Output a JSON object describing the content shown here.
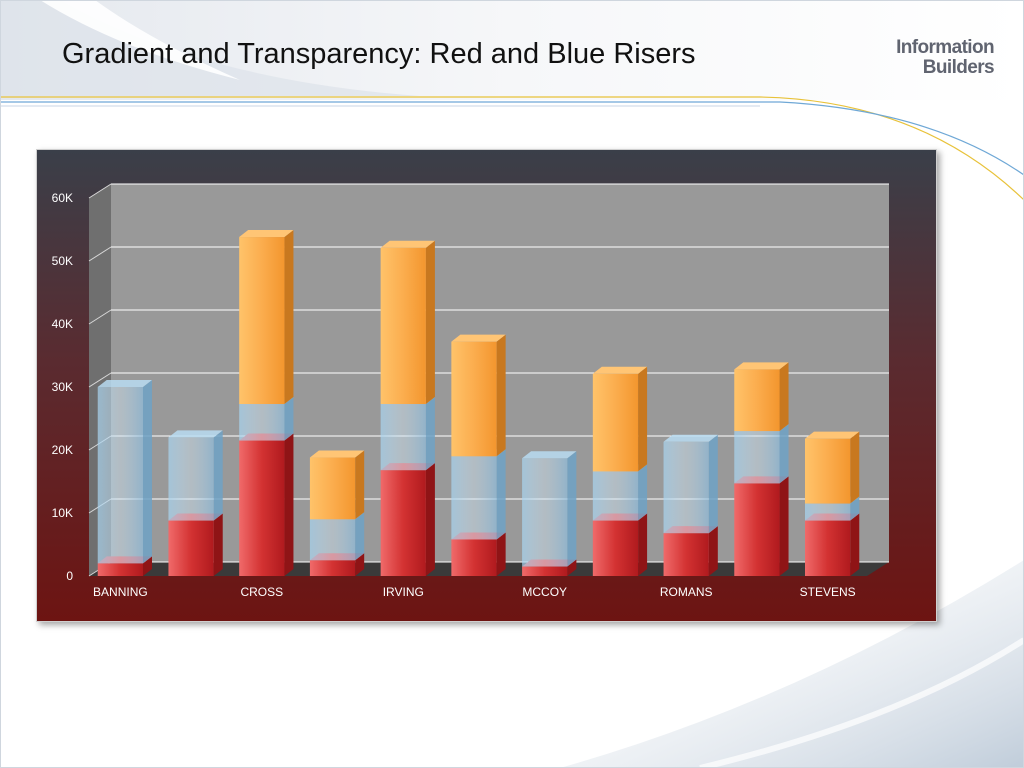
{
  "slide": {
    "title": "Gradient and Transparency: Red and Blue Risers",
    "logo_line1": "Information",
    "logo_line2": "Builders"
  },
  "chart_data": {
    "type": "bar",
    "style": "3d stacked columns with gradient and transparency",
    "ylim": [
      0,
      60000
    ],
    "y_ticks": [
      "0",
      "10K",
      "20K",
      "30K",
      "40K",
      "50K",
      "60K"
    ],
    "x_tick_labels": [
      "BANNING",
      "",
      "CROSS",
      "",
      "IRVING",
      "",
      "MCCOY",
      "",
      "ROMANS",
      "",
      "STEVENS"
    ],
    "grid": true,
    "colors": {
      "red": "#c8282a",
      "blue": "#8cc4e8",
      "orange": "#f9a845"
    },
    "series": [
      {
        "values": [
          2000,
          8800,
          21500,
          2500,
          16800,
          5800,
          1500,
          8800,
          6800,
          14700,
          8800
        ]
      },
      {
        "values": [
          28000,
          13200,
          5800,
          6500,
          10500,
          13200,
          17200,
          7800,
          14500,
          8300,
          2700
        ]
      },
      {
        "values": [
          0,
          0,
          26500,
          9800,
          24800,
          18200,
          0,
          15500,
          0,
          9800,
          10300
        ]
      }
    ]
  }
}
